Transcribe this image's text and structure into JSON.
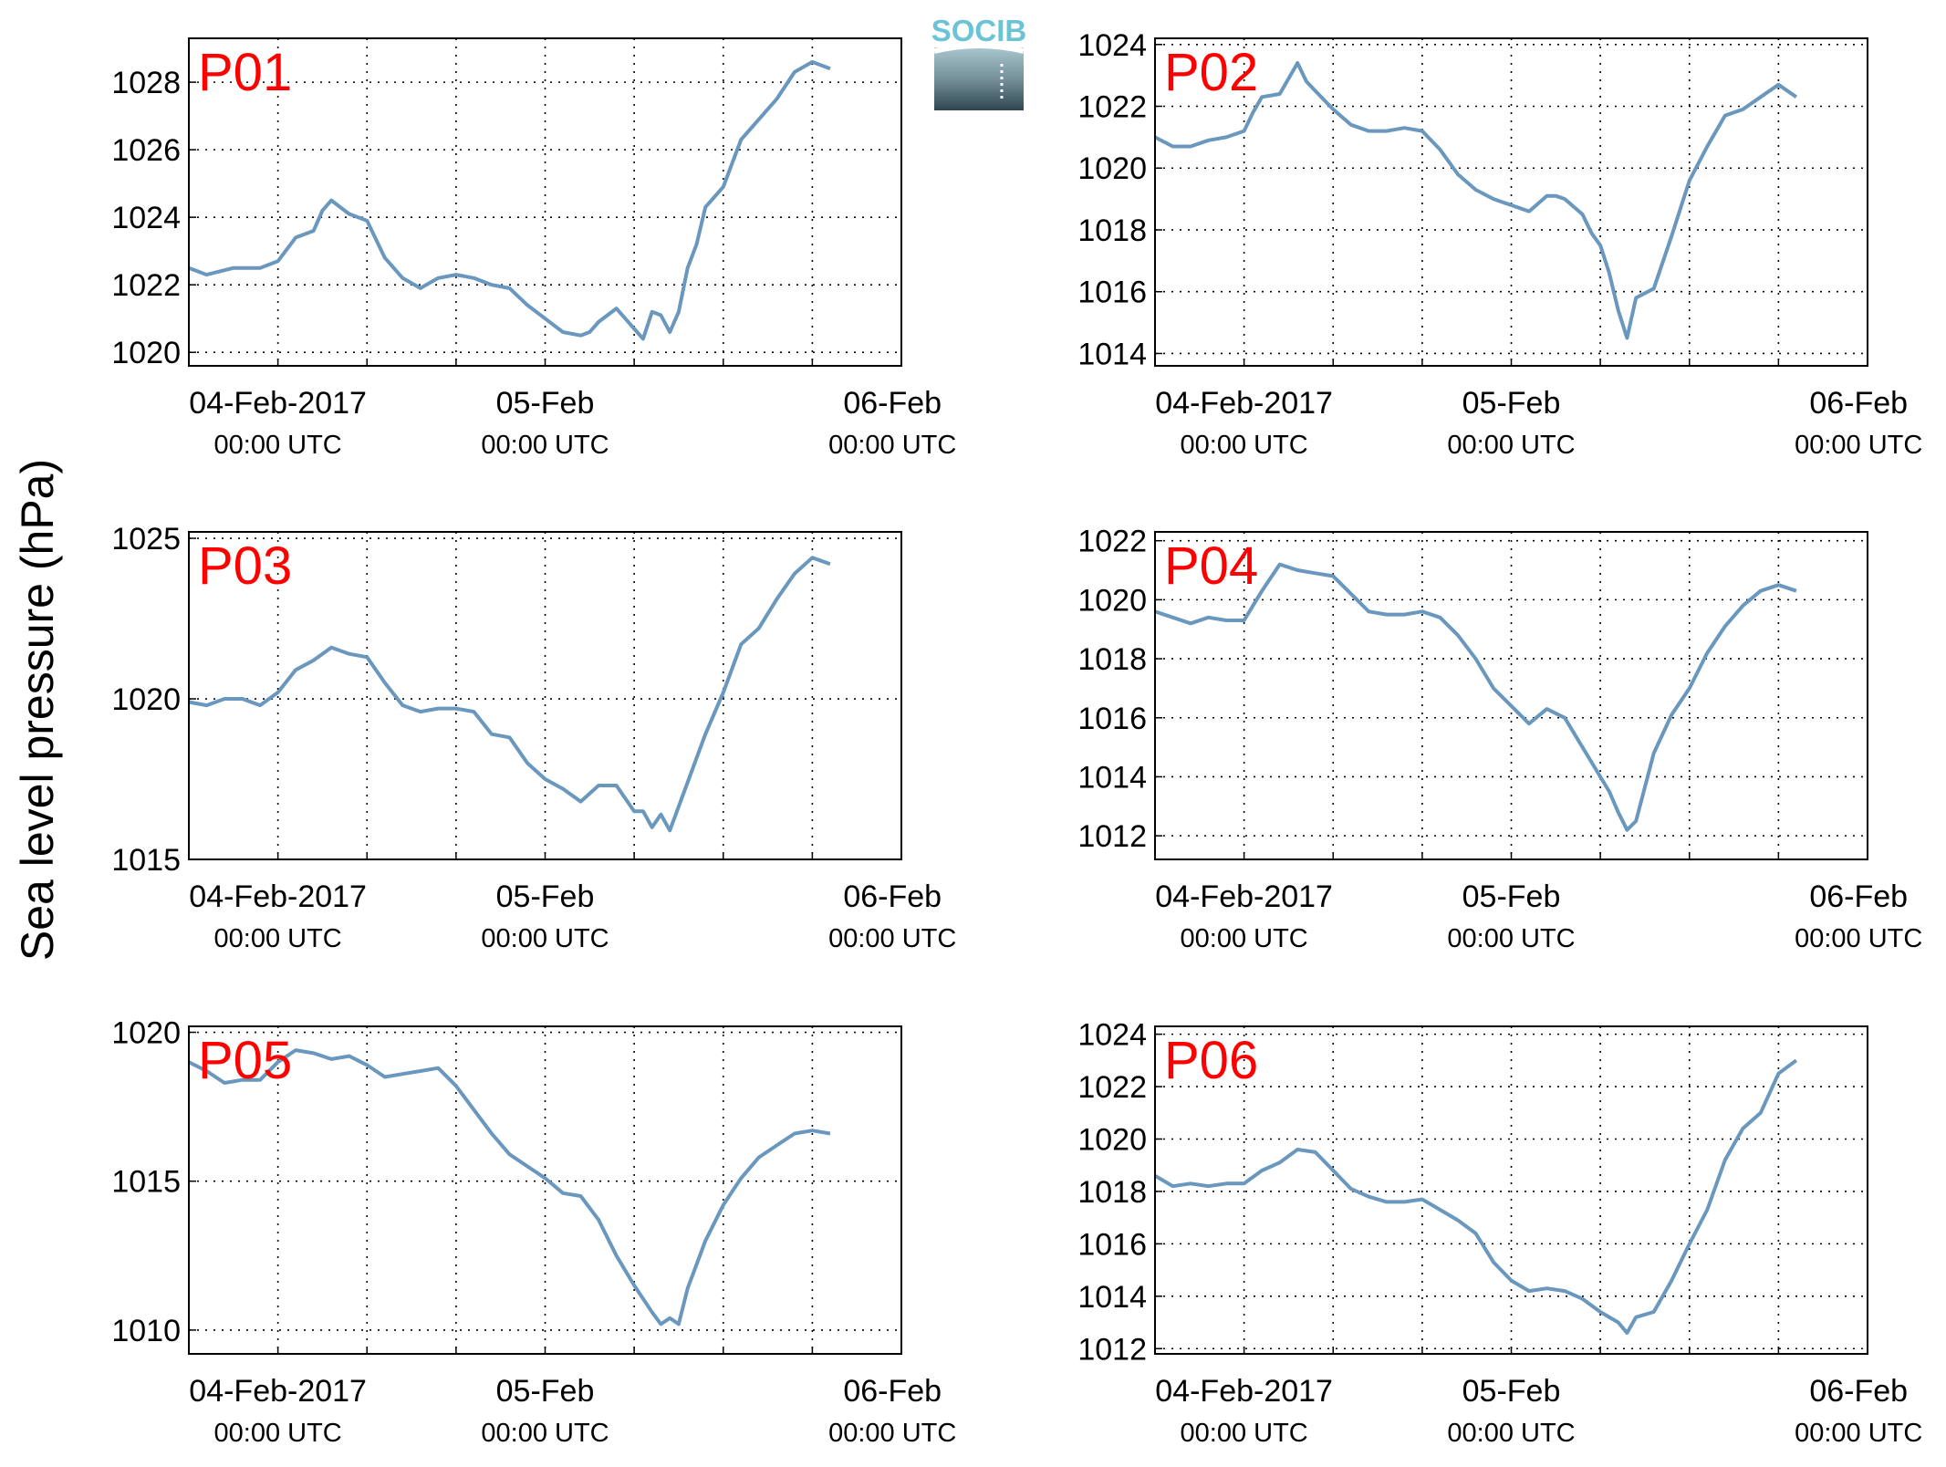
{
  "figure": {
    "ylabel": "Sea level pressure (hPa)",
    "logo_text": "SOCIB",
    "line_color": "#6a97bd",
    "label_color": "#ff0000"
  },
  "chart_data": [
    {
      "type": "line",
      "title": "P01",
      "ylabel": "",
      "x_unit": "hours since 04-Feb-2017 00:00 UTC",
      "xlim": [
        -10,
        70
      ],
      "ylim": [
        1019.6,
        1029.3
      ],
      "yticks": [
        "1020",
        "1022",
        "1024",
        "1026",
        "1028"
      ],
      "xticks": [
        {
          "label": "04-Feb-2017",
          "sub": "00:00 UTC"
        },
        {
          "label": "05-Feb",
          "sub": "00:00 UTC"
        },
        {
          "label": "06-Feb",
          "sub": "00:00 UTC"
        }
      ],
      "grid": true,
      "series": [
        {
          "x": [
            -10,
            -8,
            -5,
            -2,
            0,
            2,
            4,
            5,
            6,
            8,
            10,
            12,
            14,
            16,
            18,
            20,
            22,
            24,
            26,
            28,
            30,
            32,
            34,
            35,
            36,
            38,
            40,
            41,
            42,
            43,
            44,
            45,
            46,
            47,
            48,
            50,
            52,
            54,
            56,
            58,
            60,
            62
          ],
          "y": [
            1022.5,
            1022.3,
            1022.5,
            1022.5,
            1022.7,
            1023.4,
            1023.6,
            1024.2,
            1024.5,
            1024.1,
            1023.9,
            1022.8,
            1022.2,
            1021.9,
            1022.2,
            1022.3,
            1022.2,
            1022.0,
            1021.9,
            1021.4,
            1021.0,
            1020.6,
            1020.5,
            1020.6,
            1020.9,
            1021.3,
            1020.7,
            1020.4,
            1021.2,
            1021.1,
            1020.6,
            1021.2,
            1022.5,
            1023.2,
            1024.3,
            1024.9,
            1026.3,
            1026.9,
            1027.5,
            1028.3,
            1028.6,
            1028.4
          ]
        }
      ]
    },
    {
      "type": "line",
      "title": "P02",
      "ylabel": "",
      "x_unit": "hours since 04-Feb-2017 00:00 UTC",
      "xlim": [
        -10,
        70
      ],
      "ylim": [
        1013.6,
        1024.2
      ],
      "yticks": [
        "1014",
        "1016",
        "1018",
        "1020",
        "1022",
        "1024"
      ],
      "xticks": [
        {
          "label": "04-Feb-2017",
          "sub": "00:00 UTC"
        },
        {
          "label": "05-Feb",
          "sub": "00:00 UTC"
        },
        {
          "label": "06-Feb",
          "sub": "00:00 UTC"
        }
      ],
      "grid": true,
      "series": [
        {
          "x": [
            -10,
            -8,
            -6,
            -4,
            -2,
            0,
            1,
            2,
            4,
            6,
            7,
            8,
            10,
            12,
            14,
            16,
            18,
            20,
            22,
            24,
            26,
            28,
            30,
            32,
            34,
            35,
            36,
            38,
            39,
            40,
            41,
            42,
            43,
            44,
            46,
            48,
            50,
            52,
            54,
            56,
            58,
            60,
            62
          ],
          "y": [
            1021.0,
            1020.7,
            1020.7,
            1020.9,
            1021.0,
            1021.2,
            1021.8,
            1022.3,
            1022.4,
            1023.4,
            1022.8,
            1022.5,
            1021.9,
            1021.4,
            1021.2,
            1021.2,
            1021.3,
            1021.2,
            1020.6,
            1019.8,
            1019.3,
            1019.0,
            1018.8,
            1018.6,
            1019.1,
            1019.1,
            1019.0,
            1018.5,
            1017.9,
            1017.5,
            1016.6,
            1015.4,
            1014.5,
            1015.8,
            1016.1,
            1017.8,
            1019.6,
            1020.7,
            1021.7,
            1021.9,
            1022.3,
            1022.7,
            1022.3
          ]
        }
      ]
    },
    {
      "type": "line",
      "title": "P03",
      "ylabel": "",
      "x_unit": "hours since 04-Feb-2017 00:00 UTC",
      "xlim": [
        -10,
        70
      ],
      "ylim": [
        1015,
        1025.2
      ],
      "yticks": [
        "1015",
        "1020",
        "1025"
      ],
      "xticks": [
        {
          "label": "04-Feb-2017",
          "sub": "00:00 UTC"
        },
        {
          "label": "05-Feb",
          "sub": "00:00 UTC"
        },
        {
          "label": "06-Feb",
          "sub": "00:00 UTC"
        }
      ],
      "grid": true,
      "series": [
        {
          "x": [
            -10,
            -8,
            -6,
            -4,
            -2,
            0,
            2,
            4,
            6,
            8,
            10,
            12,
            14,
            16,
            18,
            20,
            22,
            24,
            26,
            28,
            30,
            32,
            34,
            36,
            38,
            40,
            41,
            42,
            43,
            44,
            46,
            48,
            50,
            52,
            54,
            56,
            58,
            60,
            62
          ],
          "y": [
            1019.9,
            1019.8,
            1020.0,
            1020.0,
            1019.8,
            1020.2,
            1020.9,
            1021.2,
            1021.6,
            1021.4,
            1021.3,
            1020.5,
            1019.8,
            1019.6,
            1019.7,
            1019.7,
            1019.6,
            1018.9,
            1018.8,
            1018.0,
            1017.5,
            1017.2,
            1016.8,
            1017.3,
            1017.3,
            1016.5,
            1016.5,
            1016.0,
            1016.4,
            1015.9,
            1017.4,
            1018.9,
            1020.2,
            1021.7,
            1022.2,
            1023.1,
            1023.9,
            1024.4,
            1024.2
          ]
        }
      ]
    },
    {
      "type": "line",
      "title": "P04",
      "ylabel": "",
      "x_unit": "hours since 04-Feb-2017 00:00 UTC",
      "xlim": [
        -10,
        70
      ],
      "ylim": [
        1011.2,
        1022.3
      ],
      "yticks": [
        "1012",
        "1014",
        "1016",
        "1018",
        "1020",
        "1022"
      ],
      "xticks": [
        {
          "label": "04-Feb-2017",
          "sub": "00:00 UTC"
        },
        {
          "label": "05-Feb",
          "sub": "00:00 UTC"
        },
        {
          "label": "06-Feb",
          "sub": "00:00 UTC"
        }
      ],
      "grid": true,
      "series": [
        {
          "x": [
            -10,
            -8,
            -6,
            -4,
            -2,
            0,
            2,
            4,
            6,
            8,
            10,
            12,
            14,
            16,
            18,
            20,
            22,
            24,
            26,
            28,
            30,
            32,
            34,
            36,
            38,
            40,
            41,
            42,
            43,
            44,
            46,
            48,
            50,
            52,
            54,
            56,
            58,
            60,
            62
          ],
          "y": [
            1019.6,
            1019.4,
            1019.2,
            1019.4,
            1019.3,
            1019.3,
            1020.3,
            1021.2,
            1021.0,
            1020.9,
            1020.8,
            1020.2,
            1019.6,
            1019.5,
            1019.5,
            1019.6,
            1019.4,
            1018.8,
            1018.0,
            1017.0,
            1016.4,
            1015.8,
            1016.3,
            1016.0,
            1015.0,
            1014.0,
            1013.5,
            1012.8,
            1012.2,
            1012.5,
            1014.8,
            1016.1,
            1017.0,
            1018.2,
            1019.1,
            1019.8,
            1020.3,
            1020.5,
            1020.3
          ]
        }
      ]
    },
    {
      "type": "line",
      "title": "P05",
      "ylabel": "",
      "x_unit": "hours since 04-Feb-2017 00:00 UTC",
      "xlim": [
        -10,
        70
      ],
      "ylim": [
        1009.2,
        1020.2
      ],
      "yticks": [
        "1010",
        "1015",
        "1020"
      ],
      "xticks": [
        {
          "label": "04-Feb-2017",
          "sub": "00:00 UTC"
        },
        {
          "label": "05-Feb",
          "sub": "00:00 UTC"
        },
        {
          "label": "06-Feb",
          "sub": "00:00 UTC"
        }
      ],
      "grid": true,
      "series": [
        {
          "x": [
            -10,
            -8,
            -6,
            -4,
            -2,
            0,
            2,
            4,
            6,
            8,
            10,
            12,
            14,
            16,
            18,
            20,
            22,
            24,
            26,
            28,
            30,
            32,
            34,
            36,
            38,
            40,
            42,
            43,
            44,
            45,
            46,
            48,
            50,
            52,
            54,
            56,
            58,
            60,
            62
          ],
          "y": [
            1019.0,
            1018.7,
            1018.3,
            1018.4,
            1018.4,
            1019.0,
            1019.4,
            1019.3,
            1019.1,
            1019.2,
            1018.9,
            1018.5,
            1018.6,
            1018.7,
            1018.8,
            1018.2,
            1017.4,
            1016.6,
            1015.9,
            1015.5,
            1015.1,
            1014.6,
            1014.5,
            1013.7,
            1012.5,
            1011.5,
            1010.6,
            1010.2,
            1010.4,
            1010.2,
            1011.4,
            1013.0,
            1014.2,
            1015.1,
            1015.8,
            1016.2,
            1016.6,
            1016.7,
            1016.6
          ]
        }
      ]
    },
    {
      "type": "line",
      "title": "P06",
      "ylabel": "",
      "x_unit": "hours since 04-Feb-2017 00:00 UTC",
      "xlim": [
        -10,
        70
      ],
      "ylim": [
        1011.8,
        1024.3
      ],
      "yticks": [
        "1012",
        "1014",
        "1016",
        "1018",
        "1020",
        "1022",
        "1024"
      ],
      "xticks": [
        {
          "label": "04-Feb-2017",
          "sub": "00:00 UTC"
        },
        {
          "label": "05-Feb",
          "sub": "00:00 UTC"
        },
        {
          "label": "06-Feb",
          "sub": "00:00 UTC"
        }
      ],
      "grid": true,
      "series": [
        {
          "x": [
            -10,
            -8,
            -6,
            -4,
            -2,
            0,
            2,
            4,
            6,
            8,
            10,
            12,
            14,
            16,
            18,
            20,
            22,
            24,
            26,
            28,
            30,
            32,
            34,
            36,
            38,
            40,
            42,
            43,
            44,
            46,
            48,
            50,
            52,
            54,
            56,
            58,
            60,
            62
          ],
          "y": [
            1018.6,
            1018.2,
            1018.3,
            1018.2,
            1018.3,
            1018.3,
            1018.8,
            1019.1,
            1019.6,
            1019.5,
            1018.8,
            1018.1,
            1017.8,
            1017.6,
            1017.6,
            1017.7,
            1017.3,
            1016.9,
            1016.4,
            1015.3,
            1014.6,
            1014.2,
            1014.3,
            1014.2,
            1013.9,
            1013.4,
            1013.0,
            1012.6,
            1013.2,
            1013.4,
            1014.6,
            1016.0,
            1017.3,
            1019.2,
            1020.4,
            1021.0,
            1022.5,
            1023.0
          ]
        }
      ]
    }
  ]
}
